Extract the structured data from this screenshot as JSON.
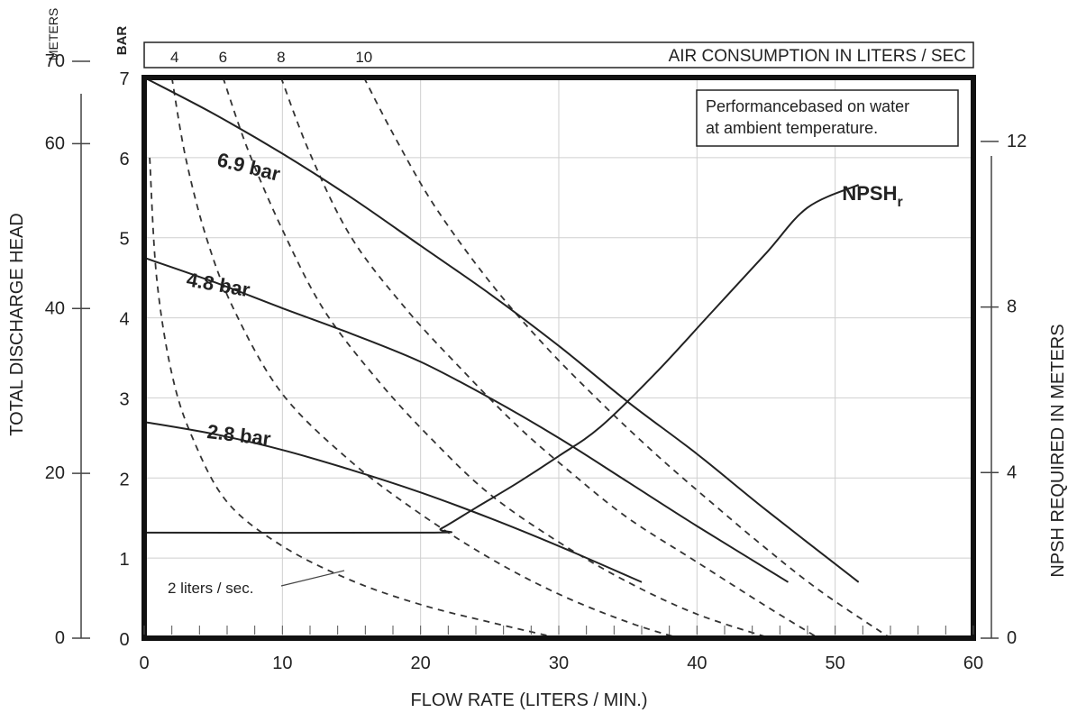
{
  "chart_data": {
    "type": "line",
    "title": "",
    "xlabel": "FLOW RATE (LITERS / MIN.)",
    "ylabel_bar": "BAR",
    "ylabel_meters_unit": "METERS",
    "ylabel_meters": "TOTAL DISCHARGE HEAD",
    "ylabel_right": "NPSH REQUIRED IN METERS",
    "top_axis_label": "AIR CONSUMPTION IN LITERS / SEC",
    "note": "Performancebased on water\nat ambient temperature.",
    "xlim": [
      0,
      60
    ],
    "ylim_bar": [
      0,
      7
    ],
    "ylim_m": [
      0,
      70
    ],
    "ylim_npsh": [
      0,
      14
    ],
    "grid": true,
    "x_ticks": [
      "0",
      "10",
      "20",
      "30",
      "40",
      "50",
      "60"
    ],
    "x_tick_values": [
      0,
      10,
      20,
      30,
      40,
      50,
      60
    ],
    "bar_ticks": [
      "0",
      "1",
      "2",
      "3",
      "4",
      "5",
      "6",
      "7"
    ],
    "bar_tick_values": [
      0,
      1,
      2,
      3,
      4,
      5,
      6,
      7
    ],
    "m_ticks": [
      "0",
      "20",
      "40",
      "60",
      "70"
    ],
    "m_tick_values": [
      0,
      20,
      40,
      60,
      70
    ],
    "npsh_ticks": [
      "0",
      "4",
      "8",
      "12"
    ],
    "npsh_tick_values": [
      0,
      4,
      8,
      12
    ],
    "top_ticks": [
      "4",
      "6",
      "8",
      "10"
    ],
    "top_tick_values": [
      2.2,
      5.7,
      9.9,
      15.9
    ],
    "pressure_series": [
      {
        "name": "6.9 bar",
        "x": [
          0,
          5,
          10,
          15,
          20,
          25,
          30,
          35,
          40,
          45,
          51.7
        ],
        "y": [
          7.0,
          6.55,
          6.05,
          5.5,
          4.9,
          4.3,
          3.65,
          2.95,
          2.3,
          1.6,
          0.7
        ]
      },
      {
        "name": "4.8 bar",
        "x": [
          0,
          5,
          10,
          15,
          20,
          25,
          30,
          35,
          40,
          46.6
        ],
        "y": [
          4.75,
          4.45,
          4.12,
          3.8,
          3.45,
          3.0,
          2.5,
          1.95,
          1.4,
          0.7
        ]
      },
      {
        "name": "2.8 bar",
        "x": [
          0,
          5,
          10,
          15,
          20,
          25,
          30,
          36
        ],
        "y": [
          2.7,
          2.55,
          2.35,
          2.1,
          1.82,
          1.5,
          1.15,
          0.7
        ]
      }
    ],
    "air_consumption_series": [
      {
        "name": "2 liters / sec.",
        "x": [
          0.4,
          0.9,
          2,
          3.5,
          6,
          10,
          15,
          20,
          25,
          30
        ],
        "y": [
          6.0,
          4.5,
          3.3,
          2.5,
          1.7,
          1.15,
          0.72,
          0.42,
          0.2,
          0.0
        ]
      },
      {
        "name": "4",
        "x": [
          2.0,
          3.0,
          4.5,
          6.5,
          10,
          15,
          20,
          25,
          30,
          35,
          38.7
        ],
        "y": [
          7.0,
          6.0,
          5.0,
          4.1,
          3.05,
          2.2,
          1.55,
          1.0,
          0.55,
          0.2,
          0.0
        ]
      },
      {
        "name": "6",
        "x": [
          5.7,
          7.5,
          10,
          13,
          17,
          21,
          25,
          30,
          35,
          40,
          45.3
        ],
        "y": [
          7.0,
          6.1,
          5.1,
          4.1,
          3.2,
          2.45,
          1.8,
          1.2,
          0.7,
          0.3,
          0.0
        ]
      },
      {
        "name": "8",
        "x": [
          9.9,
          12,
          15,
          19,
          23,
          27,
          31,
          35,
          40,
          45,
          48.8
        ],
        "y": [
          7.0,
          6.05,
          5.0,
          4.1,
          3.35,
          2.65,
          2.05,
          1.5,
          0.95,
          0.4,
          0.0
        ]
      },
      {
        "name": "10",
        "x": [
          15.9,
          18,
          21,
          25,
          29,
          33,
          37,
          41,
          45,
          49,
          54
        ],
        "y": [
          7.0,
          6.3,
          5.4,
          4.45,
          3.65,
          2.95,
          2.3,
          1.7,
          1.12,
          0.58,
          0.0
        ]
      }
    ],
    "npsh_series": {
      "name": "NPSHr",
      "label_main": "NPSH",
      "label_sub": "r",
      "x": [
        0,
        20.5,
        21.5,
        24,
        27,
        30,
        33,
        37,
        41,
        45,
        48,
        51.7
      ],
      "y_m": [
        2.55,
        2.55,
        2.65,
        3.15,
        3.75,
        4.4,
        5.1,
        6.4,
        7.85,
        9.3,
        10.4,
        10.95
      ]
    },
    "callout_label": "2 liters / sec."
  }
}
